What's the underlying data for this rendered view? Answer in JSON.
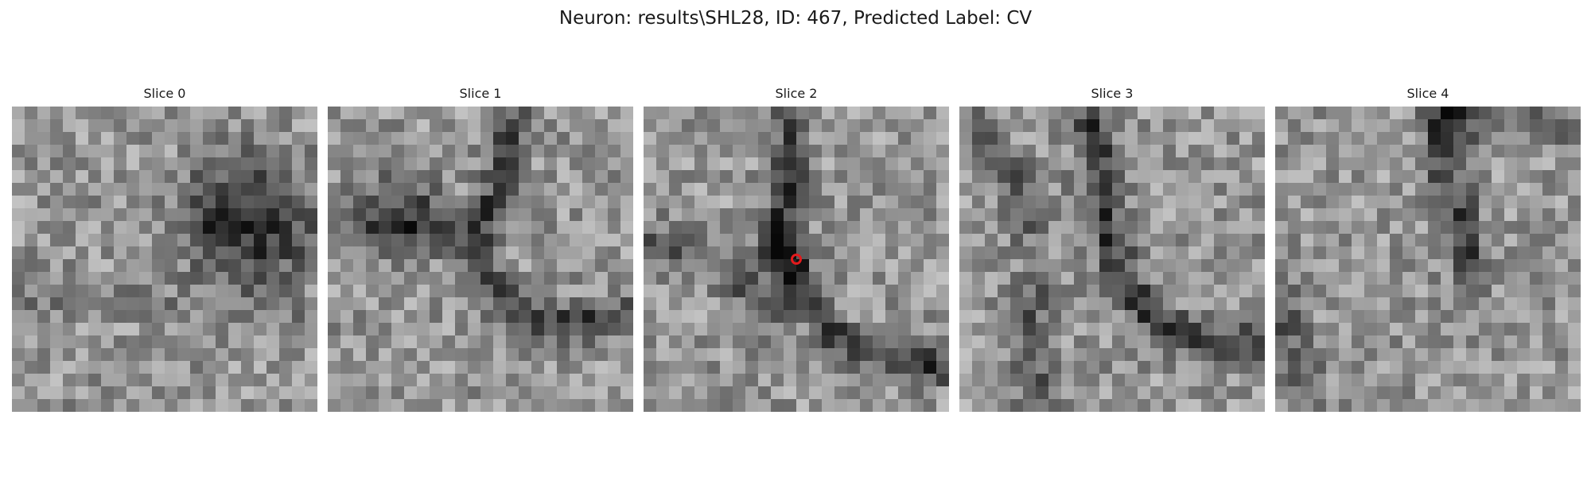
{
  "figure": {
    "title": "Neuron: results\\SHL28, ID: 467, Predicted Label: CV",
    "colormap": "gray",
    "marker_color": "#e31a1c"
  },
  "slices": [
    {
      "label": "Slice 0"
    },
    {
      "label": "Slice 1"
    },
    {
      "label": "Slice 2",
      "marker": true
    },
    {
      "label": "Slice 3"
    },
    {
      "label": "Slice 4"
    }
  ]
}
